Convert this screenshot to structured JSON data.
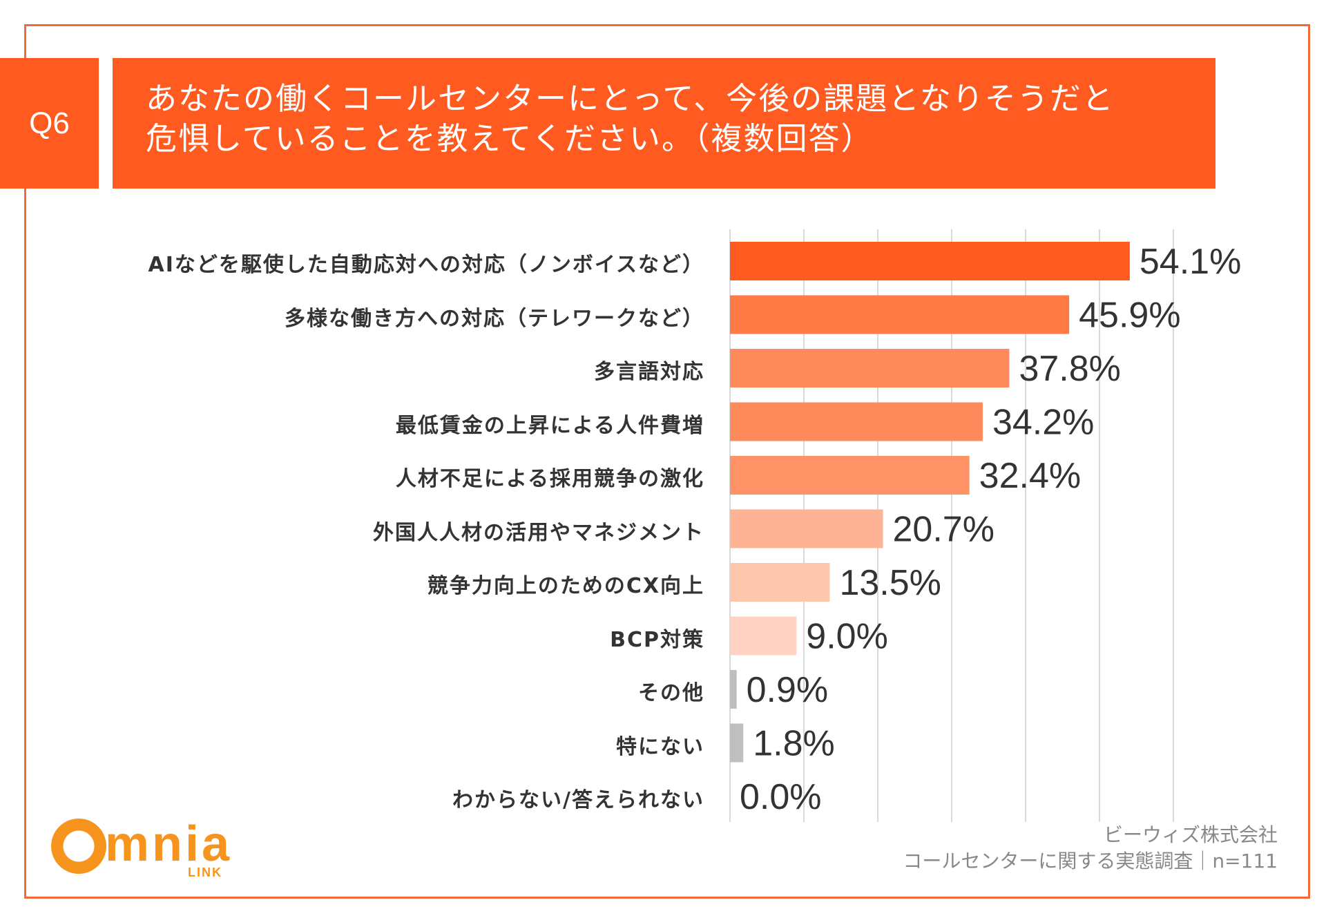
{
  "question": {
    "label": "Q6",
    "line1": "あなたの働くコールセンターにとって、今後の課題となりそうだと",
    "line2": "危惧していることを教えてください。（複数回答）"
  },
  "chart_data": {
    "type": "bar",
    "orientation": "horizontal",
    "title": "あなたの働くコールセンターにとって、今後の課題となりそうだと危惧していることを教えてください。（複数回答）",
    "unit": "%",
    "xlim": [
      0,
      60
    ],
    "grid": true,
    "categories": [
      "AIなどを駆使した自動応対への対応（ノンボイスなど）",
      "多様な働き方への対応（テレワークなど）",
      "多言語対応",
      "最低賃金の上昇による人件費増",
      "人材不足による採用競争の激化",
      "外国人人材の活用やマネジメント",
      "競争力向上のためのCX向上",
      "BCP対策",
      "その他",
      "特にない",
      "わからない/答えられない"
    ],
    "values": [
      54.1,
      45.9,
      37.8,
      34.2,
      32.4,
      20.7,
      13.5,
      9.0,
      0.9,
      1.8,
      0.0
    ],
    "value_labels": [
      "54.1%",
      "45.9%",
      "37.8%",
      "34.2%",
      "32.4%",
      "20.7%",
      "13.5%",
      "9.0%",
      "0.9%",
      "1.8%",
      "0.0%"
    ],
    "colors": [
      "#ff5a1f",
      "#ff7a45",
      "#ff8a5b",
      "#ff8a5b",
      "#ff9366",
      "#ffb395",
      "#ffc6ae",
      "#ffd2c2",
      "#bfbfbf",
      "#bfbfbf",
      "#bfbfbf"
    ]
  },
  "footer": {
    "company": "ビーウィズ株式会社",
    "survey": "コールセンターに関する実態調査｜n=111"
  },
  "logo": {
    "name": "mnia",
    "sub": "LINK",
    "color": "#f7941d"
  }
}
